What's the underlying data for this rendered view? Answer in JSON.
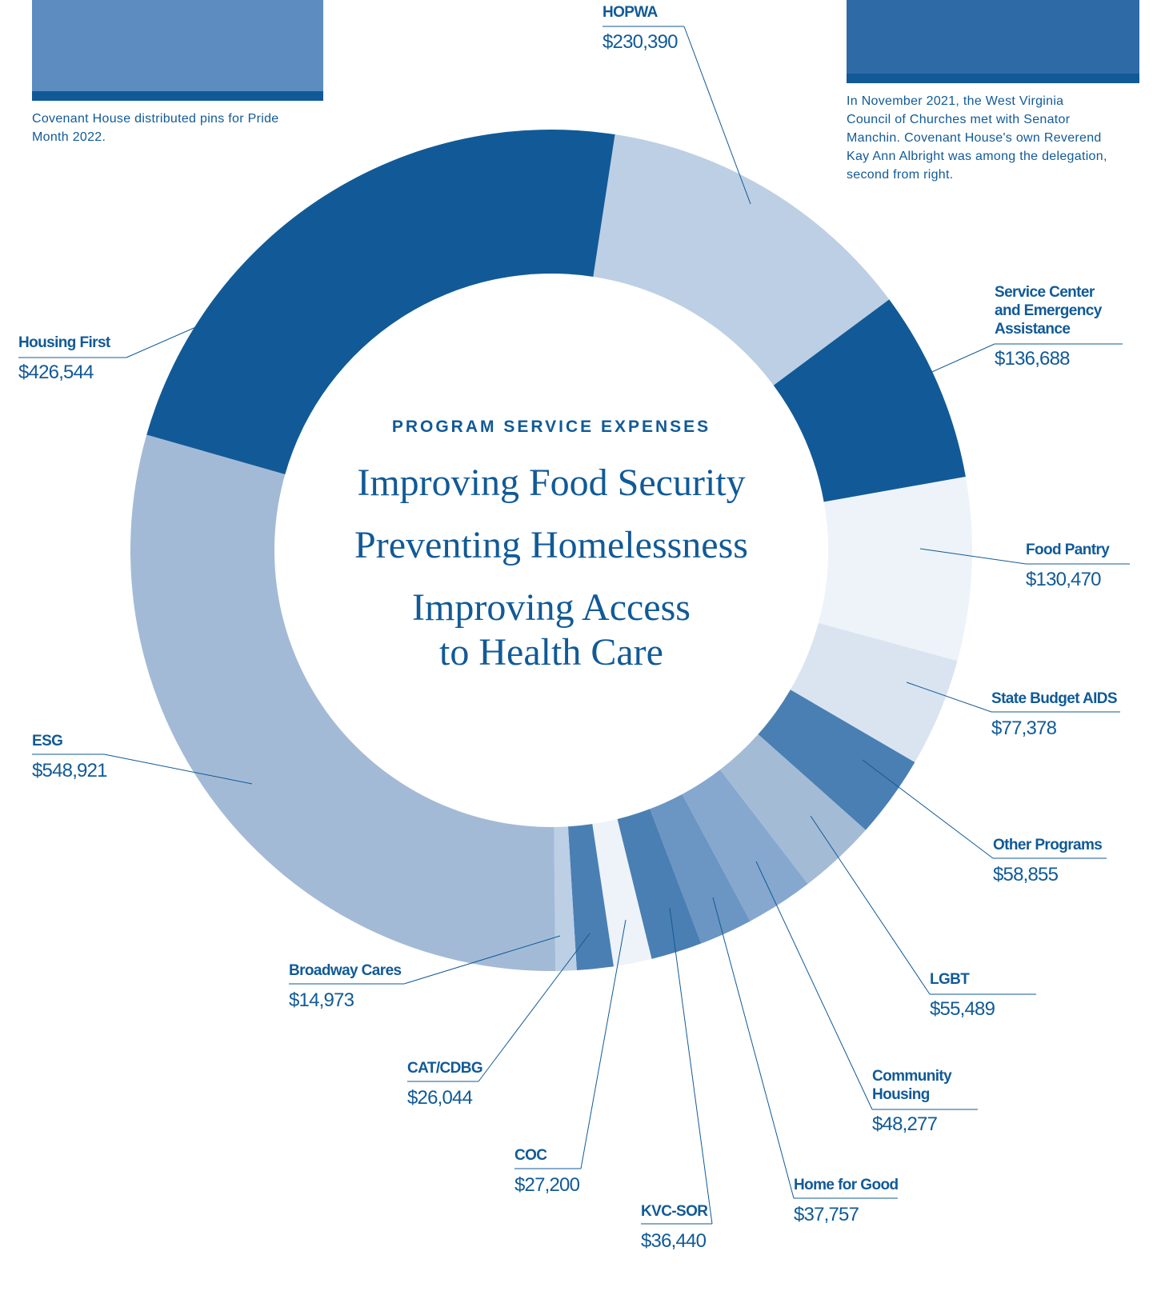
{
  "chart_data": {
    "type": "donut",
    "title": "PROGRAM SERVICE EXPENSES",
    "center_lines": [
      "Improving Food Security",
      "Preventing Homelessness",
      "Improving Access to Health Care"
    ],
    "categories": [
      "HOPWA",
      "Service Center and Emergency Assistance",
      "Food Pantry",
      "State Budget AIDS",
      "Other Programs",
      "LGBT",
      "Community Housing",
      "Home for Good",
      "KVC-SOR",
      "COC",
      "CAT/CDBG",
      "Broadway Cares",
      "ESG",
      "Housing First"
    ],
    "values": [
      230390,
      136688,
      130470,
      77378,
      58855,
      55489,
      48277,
      37757,
      36440,
      27200,
      26044,
      14973,
      548921,
      426544
    ],
    "value_labels": [
      "$230,390",
      "$136,688",
      "$130,470",
      "$77,378",
      "$58,855",
      "$55,489",
      "$48,277",
      "$37,757",
      "$36,440",
      "$27,200",
      "$26,044",
      "$14,973",
      "$548,921",
      "$426,544"
    ],
    "colors": [
      "#bccfe5",
      "#115a97",
      "#edf3f9",
      "#dae4f1",
      "#4a7fb3",
      "#a4bbd6",
      "#86a8cf",
      "#6b95c2",
      "#4a7fb3",
      "#edf3f9",
      "#4a7fb3",
      "#bccfe5",
      "#a3bad6",
      "#115a97"
    ]
  },
  "captions": [
    "Covenant House distributed pins for Pride Month 2022.",
    "In November 2021, the West Virginia Council of Churches met with Senator Manchin. Covenant House's own Reverend Kay Ann Albright was among the delegation, second from right."
  ]
}
